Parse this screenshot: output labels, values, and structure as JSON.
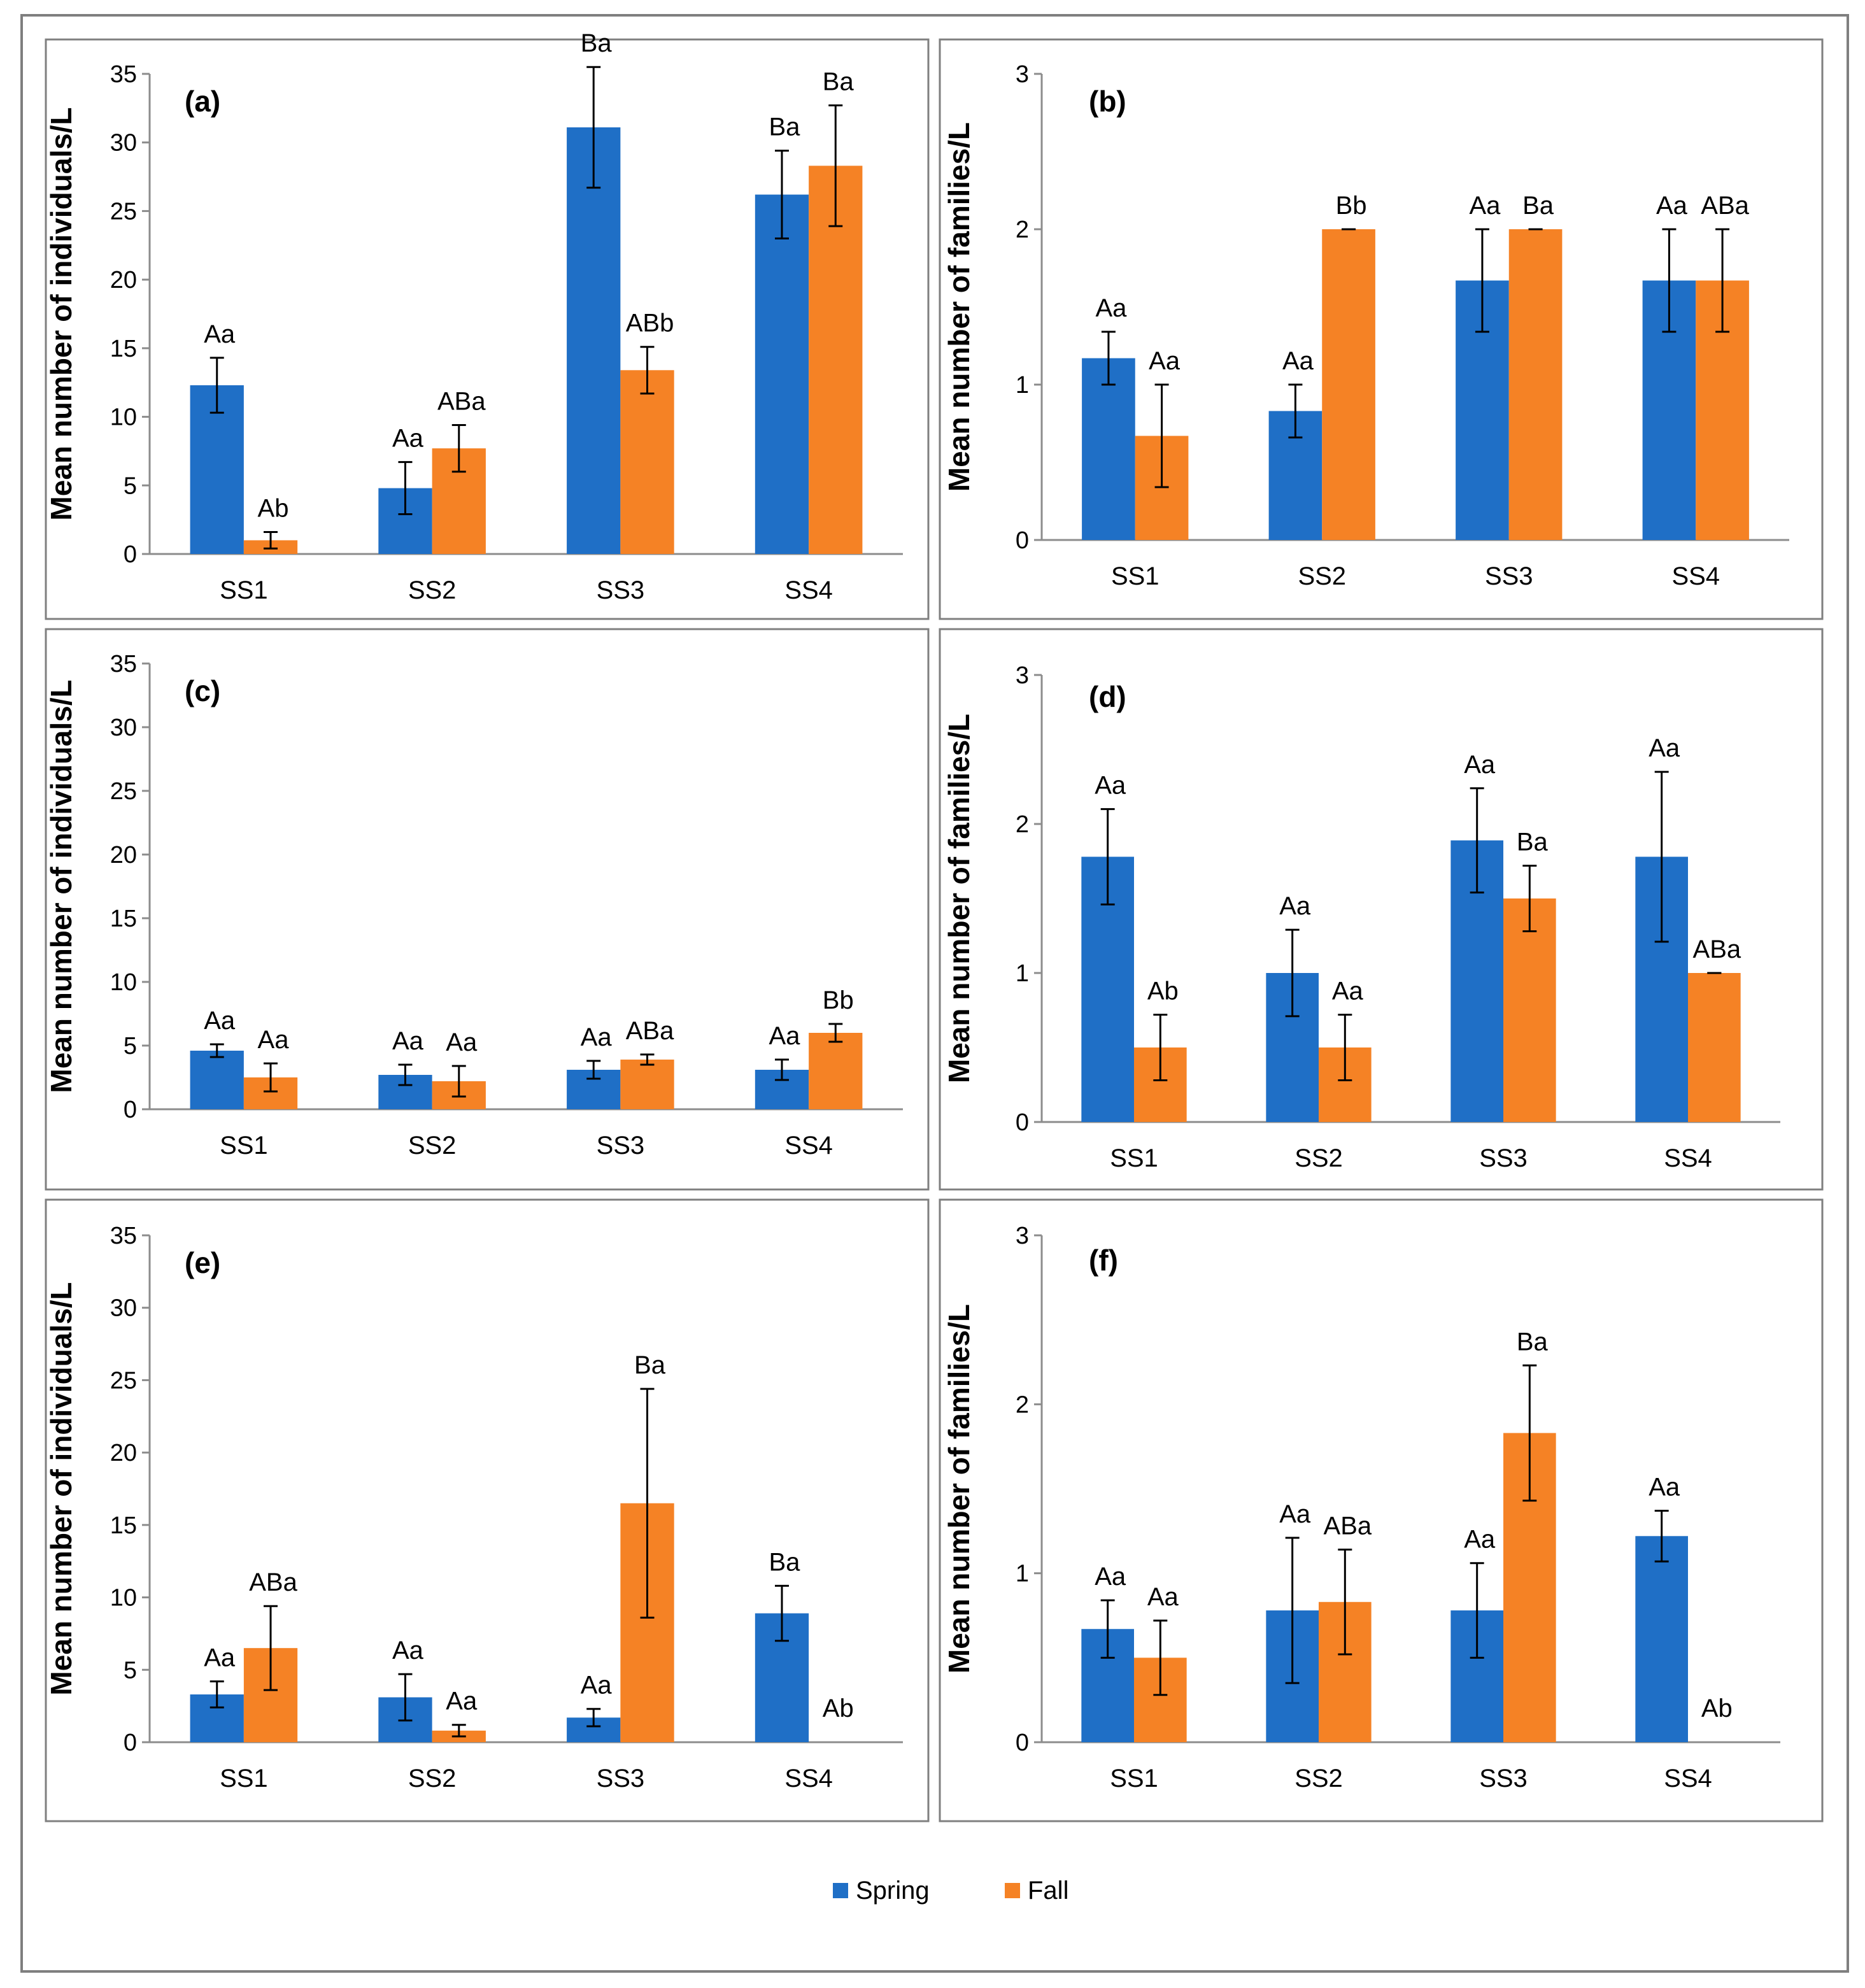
{
  "legend": [
    {
      "name": "Spring",
      "color": "#1f6fc6"
    },
    {
      "name": "Fall",
      "color": "#f58225"
    }
  ],
  "error_color": "#000000",
  "frame_color": "#7f7f7f",
  "chart_data": [
    {
      "type": "bar",
      "panel": "(a)",
      "ylabel": "Mean number of individuals/L",
      "ylim": [
        0,
        35
      ],
      "yticks": [
        "0",
        "5",
        "10",
        "15",
        "20",
        "25",
        "30",
        "35"
      ],
      "yticks_values": [
        0,
        5,
        10,
        15,
        20,
        25,
        30,
        35
      ],
      "categories": [
        "SS1",
        "SS2",
        "SS3",
        "SS4"
      ],
      "series": [
        {
          "name": "Spring",
          "values": [
            12.3,
            4.8,
            31.1,
            26.2
          ],
          "errors": [
            2.0,
            1.9,
            4.4,
            3.2
          ],
          "labels": [
            "Aa",
            "Aa",
            "Ba",
            "Ba"
          ]
        },
        {
          "name": "Fall",
          "values": [
            1.0,
            7.7,
            13.4,
            28.3
          ],
          "errors": [
            0.6,
            1.7,
            1.7,
            4.4
          ],
          "labels": [
            "Ab",
            "ABa",
            "ABb",
            "Ba"
          ]
        }
      ]
    },
    {
      "type": "bar",
      "panel": "(b)",
      "ylabel": "Mean number of families/L",
      "ylim": [
        0,
        3
      ],
      "yticks": [
        "0",
        "1",
        "2",
        "3"
      ],
      "yticks_values": [
        0,
        1,
        2,
        3
      ],
      "categories": [
        "SS1",
        "SS2",
        "SS3",
        "SS4"
      ],
      "series": [
        {
          "name": "Spring",
          "values": [
            1.17,
            0.83,
            1.67,
            1.67
          ],
          "errors": [
            0.17,
            0.17,
            0.33,
            0.33
          ],
          "labels": [
            "Aa",
            "Aa",
            "Aa",
            "Aa"
          ]
        },
        {
          "name": "Fall",
          "values": [
            0.67,
            2.0,
            2.0,
            1.67
          ],
          "errors": [
            0.33,
            0.0,
            0.0,
            0.33
          ],
          "labels": [
            "Aa",
            "Bb",
            "Ba",
            "ABa"
          ]
        }
      ]
    },
    {
      "type": "bar",
      "panel": "(c)",
      "ylabel": "Mean number of individuals/L",
      "ylim": [
        0,
        35
      ],
      "yticks": [
        "0",
        "5",
        "10",
        "15",
        "20",
        "25",
        "30",
        "35"
      ],
      "yticks_values": [
        0,
        5,
        10,
        15,
        20,
        25,
        30,
        35
      ],
      "categories": [
        "SS1",
        "SS2",
        "SS3",
        "SS4"
      ],
      "series": [
        {
          "name": "Spring",
          "values": [
            4.6,
            2.7,
            3.1,
            3.1
          ],
          "errors": [
            0.5,
            0.8,
            0.7,
            0.8
          ],
          "labels": [
            "Aa",
            "Aa",
            "Aa",
            "Aa"
          ]
        },
        {
          "name": "Fall",
          "values": [
            2.5,
            2.2,
            3.9,
            6.0
          ],
          "errors": [
            1.1,
            1.2,
            0.4,
            0.7
          ],
          "labels": [
            "Aa",
            "Aa",
            "ABa",
            "Bb"
          ]
        }
      ]
    },
    {
      "type": "bar",
      "panel": "(d)",
      "ylabel": "Mean number of families/L",
      "ylim": [
        0,
        3
      ],
      "yticks": [
        "0",
        "1",
        "2",
        "3"
      ],
      "yticks_values": [
        0,
        1,
        2,
        3
      ],
      "categories": [
        "SS1",
        "SS2",
        "SS3",
        "SS4"
      ],
      "series": [
        {
          "name": "Spring",
          "values": [
            1.78,
            1.0,
            1.89,
            1.78
          ],
          "errors": [
            0.32,
            0.29,
            0.35,
            0.57
          ],
          "labels": [
            "Aa",
            "Aa",
            "Aa",
            "Aa"
          ]
        },
        {
          "name": "Fall",
          "values": [
            0.5,
            0.5,
            1.5,
            1.0
          ],
          "errors": [
            0.22,
            0.22,
            0.22,
            0.0
          ],
          "labels": [
            "Ab",
            "Aa",
            "Ba",
            "ABa"
          ]
        }
      ]
    },
    {
      "type": "bar",
      "panel": "(e)",
      "ylabel": "Mean number of individuals/L",
      "ylim": [
        0,
        35
      ],
      "yticks": [
        "0",
        "5",
        "10",
        "15",
        "20",
        "25",
        "30",
        "35"
      ],
      "yticks_values": [
        0,
        5,
        10,
        15,
        20,
        25,
        30,
        35
      ],
      "categories": [
        "SS1",
        "SS2",
        "SS3",
        "SS4"
      ],
      "series": [
        {
          "name": "Spring",
          "values": [
            3.3,
            3.1,
            1.7,
            8.9
          ],
          "errors": [
            0.9,
            1.6,
            0.6,
            1.9
          ],
          "labels": [
            "Aa",
            "Aa",
            "Aa",
            "Ba"
          ]
        },
        {
          "name": "Fall",
          "values": [
            6.5,
            0.8,
            16.5,
            0.0
          ],
          "errors": [
            2.9,
            0.4,
            7.9,
            0.0
          ],
          "labels": [
            "ABa",
            "Aa",
            "Ba",
            "Ab"
          ]
        }
      ]
    },
    {
      "type": "bar",
      "panel": "(f)",
      "ylabel": "Mean number of families/L",
      "ylim": [
        0,
        3
      ],
      "yticks": [
        "0",
        "1",
        "2",
        "3"
      ],
      "yticks_values": [
        0,
        1,
        2,
        3
      ],
      "categories": [
        "SS1",
        "SS2",
        "SS3",
        "SS4"
      ],
      "series": [
        {
          "name": "Spring",
          "values": [
            0.67,
            0.78,
            0.78,
            1.22
          ],
          "errors": [
            0.17,
            0.43,
            0.28,
            0.15
          ],
          "labels": [
            "Aa",
            "Aa",
            "Aa",
            "Aa"
          ]
        },
        {
          "name": "Fall",
          "values": [
            0.5,
            0.83,
            1.83,
            0.0
          ],
          "errors": [
            0.22,
            0.31,
            0.4,
            0.0
          ],
          "labels": [
            "Aa",
            "ABa",
            "Ba",
            "Ab"
          ]
        }
      ]
    }
  ]
}
